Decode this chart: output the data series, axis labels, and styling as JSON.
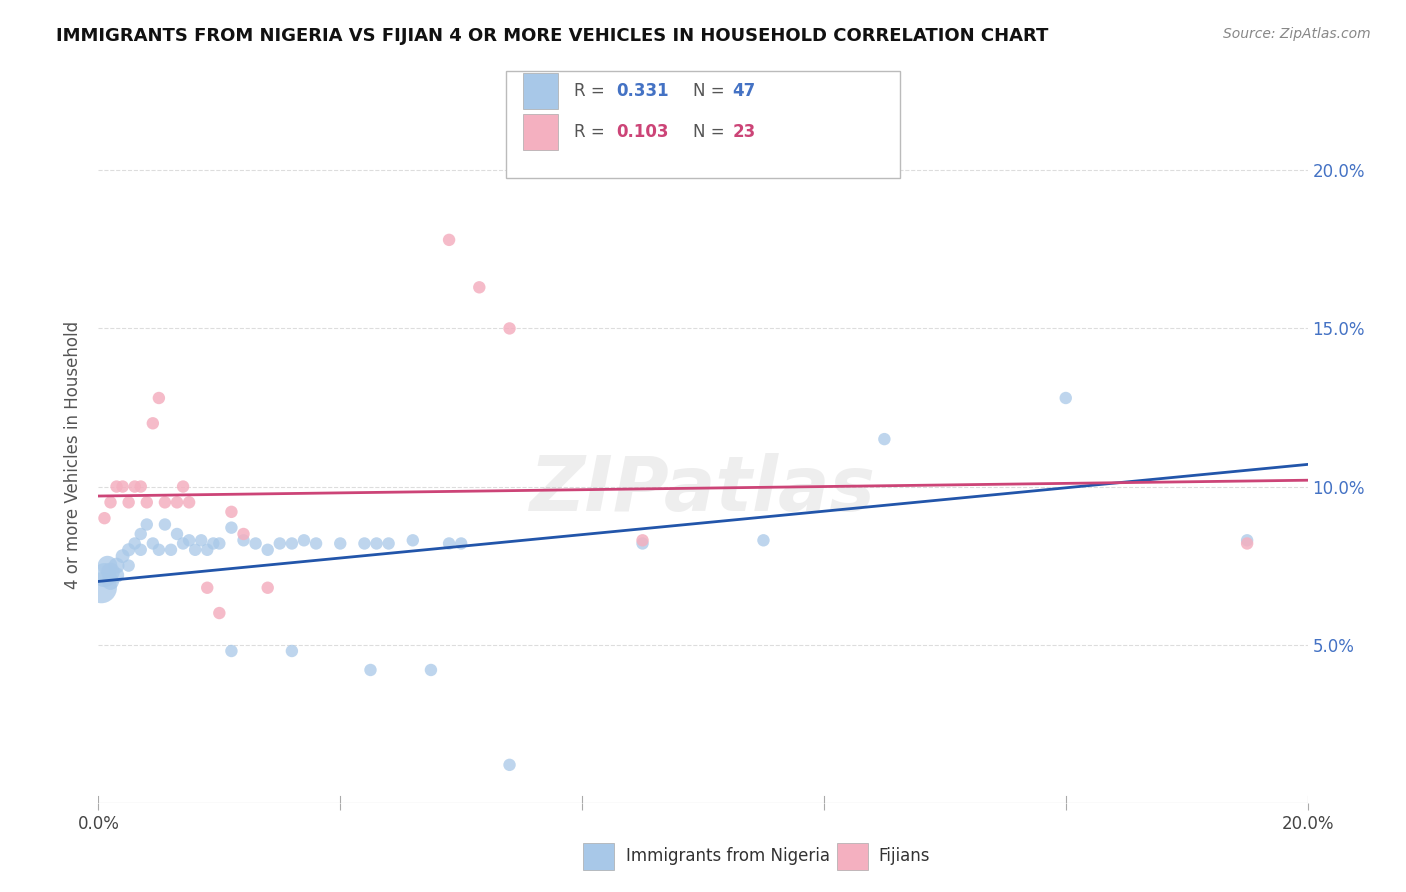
{
  "title": "IMMIGRANTS FROM NIGERIA VS FIJIAN 4 OR MORE VEHICLES IN HOUSEHOLD CORRELATION CHART",
  "source": "Source: ZipAtlas.com",
  "xlabel_legend1": "Immigrants from Nigeria",
  "xlabel_legend2": "Fijians",
  "ylabel": "4 or more Vehicles in Household",
  "color_blue": "#a8c8e8",
  "color_pink": "#f4b0c0",
  "color_blue_line": "#2255aa",
  "color_pink_line": "#cc4477",
  "xlim": [
    0.0,
    0.2
  ],
  "ylim": [
    0.0,
    0.22
  ],
  "xticks": [
    0.0,
    0.04,
    0.08,
    0.12,
    0.16,
    0.2
  ],
  "yticks": [
    0.05,
    0.1,
    0.15,
    0.2
  ],
  "blue_points": [
    [
      0.0005,
      0.068
    ],
    [
      0.001,
      0.072
    ],
    [
      0.0015,
      0.075
    ],
    [
      0.002,
      0.073
    ],
    [
      0.002,
      0.07
    ],
    [
      0.003,
      0.075
    ],
    [
      0.003,
      0.072
    ],
    [
      0.004,
      0.078
    ],
    [
      0.005,
      0.08
    ],
    [
      0.005,
      0.075
    ],
    [
      0.006,
      0.082
    ],
    [
      0.007,
      0.085
    ],
    [
      0.007,
      0.08
    ],
    [
      0.008,
      0.088
    ],
    [
      0.009,
      0.082
    ],
    [
      0.01,
      0.08
    ],
    [
      0.011,
      0.088
    ],
    [
      0.012,
      0.08
    ],
    [
      0.013,
      0.085
    ],
    [
      0.014,
      0.082
    ],
    [
      0.015,
      0.083
    ],
    [
      0.016,
      0.08
    ],
    [
      0.017,
      0.083
    ],
    [
      0.018,
      0.08
    ],
    [
      0.019,
      0.082
    ],
    [
      0.02,
      0.082
    ],
    [
      0.022,
      0.087
    ],
    [
      0.024,
      0.083
    ],
    [
      0.026,
      0.082
    ],
    [
      0.028,
      0.08
    ],
    [
      0.03,
      0.082
    ],
    [
      0.032,
      0.082
    ],
    [
      0.034,
      0.083
    ],
    [
      0.036,
      0.082
    ],
    [
      0.04,
      0.082
    ],
    [
      0.044,
      0.082
    ],
    [
      0.046,
      0.082
    ],
    [
      0.048,
      0.082
    ],
    [
      0.052,
      0.083
    ],
    [
      0.058,
      0.082
    ],
    [
      0.06,
      0.082
    ],
    [
      0.09,
      0.082
    ],
    [
      0.11,
      0.083
    ],
    [
      0.13,
      0.115
    ],
    [
      0.16,
      0.128
    ],
    [
      0.19,
      0.083
    ],
    [
      0.045,
      0.042
    ],
    [
      0.055,
      0.042
    ],
    [
      0.022,
      0.048
    ],
    [
      0.032,
      0.048
    ],
    [
      0.068,
      0.012
    ]
  ],
  "blue_sizes": [
    500,
    300,
    200,
    180,
    150,
    130,
    120,
    100,
    90,
    80,
    80,
    80,
    80,
    80,
    80,
    80,
    80,
    80,
    80,
    80,
    80,
    80,
    80,
    80,
    80,
    80,
    80,
    80,
    80,
    80,
    80,
    80,
    80,
    80,
    80,
    80,
    80,
    80,
    80,
    80,
    80,
    80,
    80,
    80,
    80,
    80,
    80,
    80,
    80,
    80,
    80
  ],
  "pink_points": [
    [
      0.001,
      0.09
    ],
    [
      0.002,
      0.095
    ],
    [
      0.003,
      0.1
    ],
    [
      0.004,
      0.1
    ],
    [
      0.005,
      0.095
    ],
    [
      0.006,
      0.1
    ],
    [
      0.007,
      0.1
    ],
    [
      0.008,
      0.095
    ],
    [
      0.009,
      0.12
    ],
    [
      0.01,
      0.128
    ],
    [
      0.011,
      0.095
    ],
    [
      0.013,
      0.095
    ],
    [
      0.014,
      0.1
    ],
    [
      0.015,
      0.095
    ],
    [
      0.018,
      0.068
    ],
    [
      0.02,
      0.06
    ],
    [
      0.022,
      0.092
    ],
    [
      0.024,
      0.085
    ],
    [
      0.028,
      0.068
    ],
    [
      0.058,
      0.178
    ],
    [
      0.063,
      0.163
    ],
    [
      0.068,
      0.15
    ],
    [
      0.09,
      0.083
    ],
    [
      0.19,
      0.082
    ]
  ],
  "pink_sizes": [
    80,
    80,
    80,
    80,
    80,
    80,
    80,
    80,
    80,
    80,
    80,
    80,
    80,
    80,
    80,
    80,
    80,
    80,
    80,
    80,
    80,
    80,
    80,
    80
  ],
  "watermark": "ZIPatlas",
  "watermark_color": "#c8c8c8",
  "blue_trend_x": [
    0.0,
    0.2
  ],
  "blue_trend_y": [
    0.07,
    0.107
  ],
  "pink_trend_x": [
    0.0,
    0.2
  ],
  "pink_trend_y": [
    0.097,
    0.102
  ]
}
